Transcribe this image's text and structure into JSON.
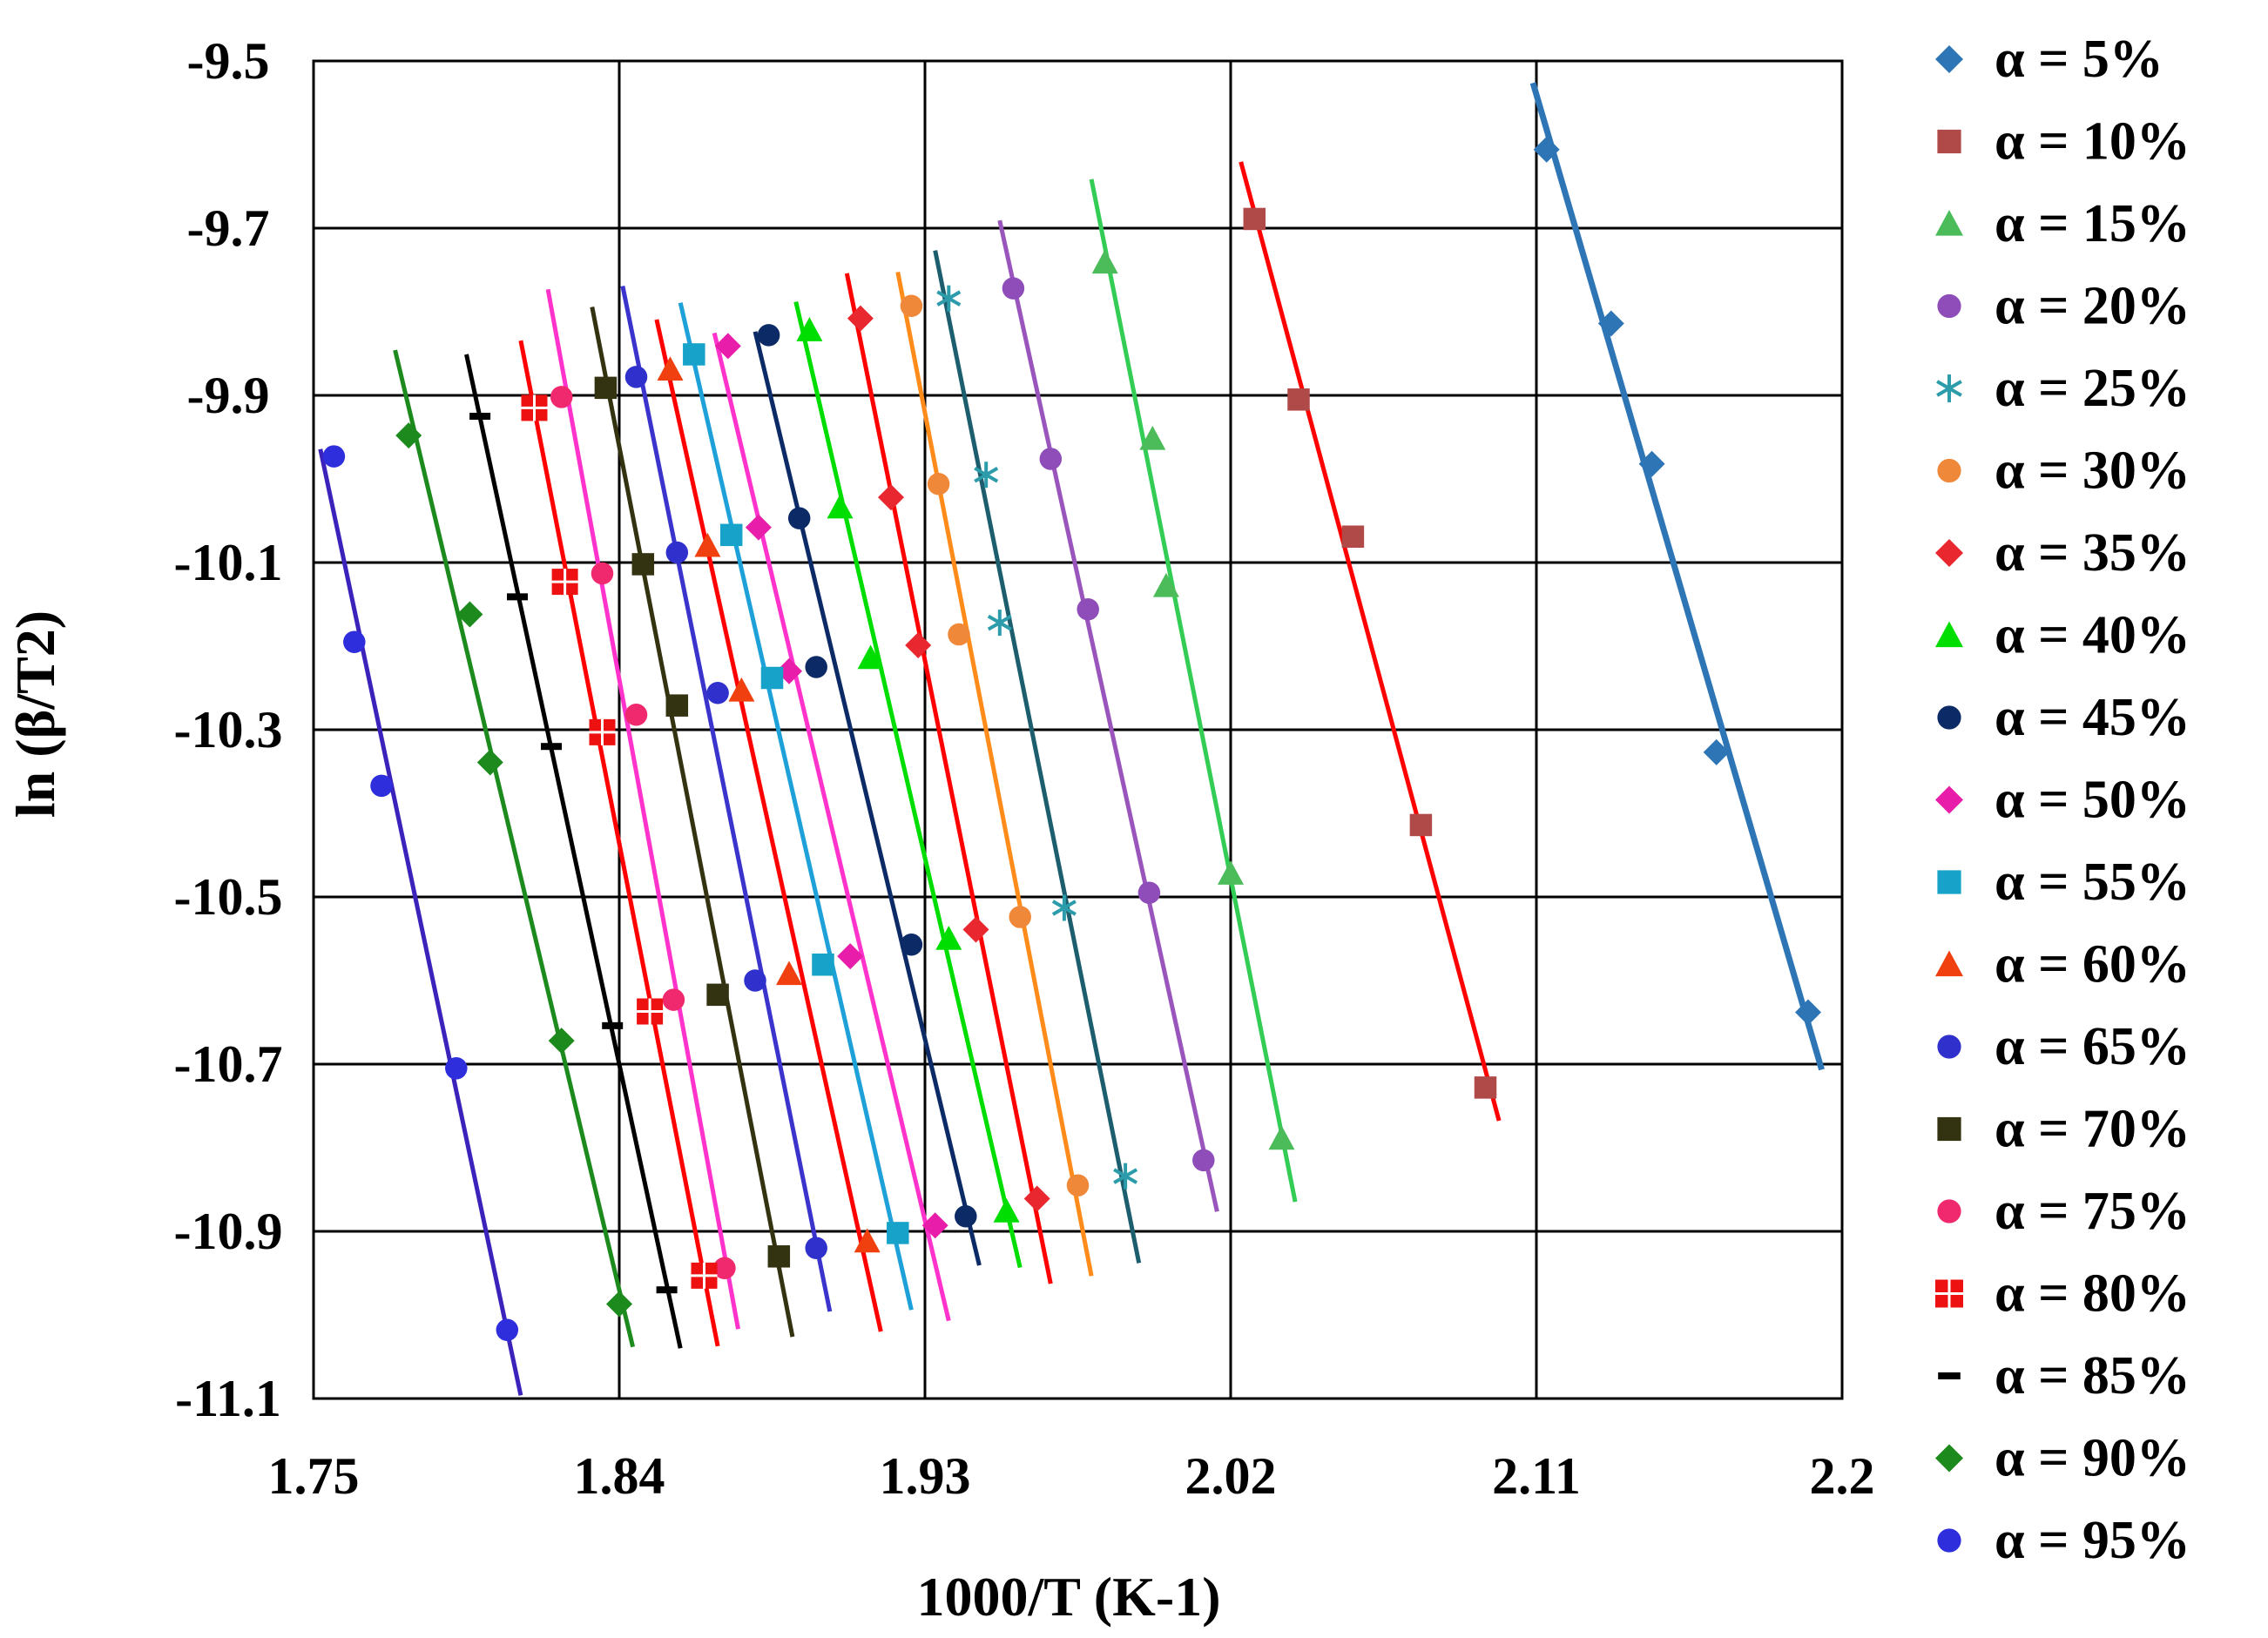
{
  "chart_data": {
    "type": "scatter",
    "title": "",
    "xlabel": "1000/T (K-1)",
    "ylabel": "ln (β/T2)",
    "xlim": [
      1.75,
      2.2
    ],
    "ylim": [
      -11.1,
      -9.5
    ],
    "xticks": [
      1.75,
      1.84,
      1.93,
      2.02,
      2.11,
      2.2
    ],
    "xtick_labels": [
      "1.75",
      "1.84",
      "1.93",
      "2.02",
      "2.11",
      "2.2"
    ],
    "yticks": [
      -9.5,
      -9.7,
      -9.9,
      -10.1,
      -10.3,
      -10.5,
      -10.7,
      -10.9,
      -11.1
    ],
    "ytick_labels": [
      "-9.5",
      "-9.7",
      "-9.9",
      "-10.1",
      "-10.3",
      "-10.5",
      "-10.7",
      "-10.9",
      "-11.1"
    ],
    "grid": true,
    "legend_position": "right",
    "series": [
      {
        "name": "α = 5%",
        "marker": "diamond",
        "color": "#2E75B6",
        "line_color": "#2E75B6",
        "x": [
          2.113,
          2.132,
          2.144,
          2.163,
          2.19
        ],
        "y": [
          -9.606,
          -9.814,
          -9.982,
          -10.327,
          -10.638
        ]
      },
      {
        "name": "α = 10%",
        "marker": "square",
        "color": "#B04A48",
        "line_color": "#FF0000",
        "x": [
          2.027,
          2.04,
          2.056,
          2.076,
          2.095
        ],
        "y": [
          -9.689,
          -9.905,
          -10.069,
          -10.414,
          -10.728
        ]
      },
      {
        "name": "α = 15%",
        "marker": "triangle",
        "color": "#4CBB5A",
        "line_color": "#33CC55",
        "x": [
          1.983,
          1.997,
          2.001,
          2.02,
          2.035
        ],
        "y": [
          -9.741,
          -9.952,
          -10.128,
          -10.472,
          -10.789
        ]
      },
      {
        "name": "α = 20%",
        "marker": "circle",
        "color": "#8E4DB8",
        "line_color": "#9955BB",
        "x": [
          1.956,
          1.967,
          1.978,
          1.996,
          2.012
        ],
        "y": [
          -9.772,
          -9.976,
          -10.156,
          -10.495,
          -10.815
        ]
      },
      {
        "name": "α = 25%",
        "marker": "star",
        "color": "#2C9BAA",
        "line_color": "#1D5E6E",
        "x": [
          1.937,
          1.948,
          1.952,
          1.971,
          1.989
        ],
        "y": [
          -9.784,
          -9.995,
          -10.172,
          -10.513,
          -10.834
        ]
      },
      {
        "name": "α = 30%",
        "marker": "circle",
        "color": "#F0883A",
        "line_color": "#FF8C1A",
        "x": [
          1.926,
          1.934,
          1.94,
          1.958,
          1.975
        ],
        "y": [
          -9.793,
          -10.006,
          -10.186,
          -10.524,
          -10.845
        ]
      },
      {
        "name": "α = 35%",
        "marker": "diamond",
        "color": "#E8282E",
        "line_color": "#FF0000",
        "x": [
          1.911,
          1.92,
          1.928,
          1.945,
          1.963
        ],
        "y": [
          -9.808,
          -10.022,
          -10.199,
          -10.539,
          -10.861
        ]
      },
      {
        "name": "α = 40%",
        "marker": "triangle",
        "color": "#00DD00",
        "line_color": "#00DD00",
        "x": [
          1.896,
          1.905,
          1.914,
          1.937,
          1.954
        ],
        "y": [
          -9.822,
          -10.034,
          -10.214,
          -10.55,
          -10.876
        ]
      },
      {
        "name": "α = 45%",
        "marker": "circle",
        "color": "#0C2A66",
        "line_color": "#0C2A66",
        "x": [
          1.884,
          1.893,
          1.898,
          1.926,
          1.942
        ],
        "y": [
          -9.828,
          -10.047,
          -10.225,
          -10.557,
          -10.882
        ]
      },
      {
        "name": "α = 50%",
        "marker": "diamond",
        "color": "#E81EAA",
        "line_color": "#FF33CC",
        "x": [
          1.872,
          1.881,
          1.89,
          1.908,
          1.933
        ],
        "y": [
          -9.841,
          -10.058,
          -10.23,
          -10.571,
          -10.893
        ]
      },
      {
        "name": "α = 55%",
        "marker": "square",
        "color": "#17A3C9",
        "line_color": "#1DA1D8",
        "x": [
          1.862,
          1.873,
          1.885,
          1.9,
          1.922
        ],
        "y": [
          -9.851,
          -10.067,
          -10.238,
          -10.581,
          -10.902
        ]
      },
      {
        "name": "α = 60%",
        "marker": "triangle",
        "color": "#F04010",
        "line_color": "#FF0000",
        "x": [
          1.855,
          1.866,
          1.876,
          1.89,
          1.913
        ],
        "y": [
          -9.869,
          -10.08,
          -10.253,
          -10.592,
          -10.912
        ]
      },
      {
        "name": "α = 65%",
        "marker": "circle",
        "color": "#3030CC",
        "line_color": "#3A33CC",
        "x": [
          1.845,
          1.857,
          1.869,
          1.88,
          1.898
        ],
        "y": [
          -9.878,
          -10.088,
          -10.256,
          -10.6,
          -10.92
        ]
      },
      {
        "name": "α = 70%",
        "marker": "square",
        "color": "#333311",
        "line_color": "#333311",
        "x": [
          1.836,
          1.847,
          1.857,
          1.869,
          1.887
        ],
        "y": [
          -9.891,
          -10.102,
          -10.271,
          -10.617,
          -10.93
        ]
      },
      {
        "name": "α = 75%",
        "marker": "circle",
        "color": "#F0286E",
        "line_color": "#FF33CC",
        "x": [
          1.823,
          1.835,
          1.845,
          1.856,
          1.871
        ],
        "y": [
          -9.902,
          -10.113,
          -10.282,
          -10.623,
          -10.944
        ]
      },
      {
        "name": "α = 80%",
        "marker": "cross-square",
        "color": "#EE1111",
        "line_color": "#FF0000",
        "x": [
          1.815,
          1.824,
          1.835,
          1.849,
          1.865
        ],
        "y": [
          -9.915,
          -10.123,
          -10.303,
          -10.637,
          -10.953
        ]
      },
      {
        "name": "α = 85%",
        "marker": "dash",
        "color": "#000000",
        "line_color": "#000000",
        "x": [
          1.799,
          1.81,
          1.82,
          1.838,
          1.854
        ],
        "y": [
          -9.925,
          -10.141,
          -10.32,
          -10.654,
          -10.97
        ]
      },
      {
        "name": "α = 90%",
        "marker": "diamond",
        "color": "#1C8A1C",
        "line_color": "#1C8A1C",
        "x": [
          1.778,
          1.796,
          1.802,
          1.823,
          1.84
        ],
        "y": [
          -9.948,
          -10.162,
          -10.339,
          -10.672,
          -10.987
        ]
      },
      {
        "name": "α = 95%",
        "marker": "circle",
        "color": "#2E2EDD",
        "line_color": "#3A22BB",
        "x": [
          1.756,
          1.762,
          1.77,
          1.792,
          1.807
        ],
        "y": [
          -9.973,
          -10.195,
          -10.367,
          -10.705,
          -11.018
        ]
      }
    ]
  }
}
